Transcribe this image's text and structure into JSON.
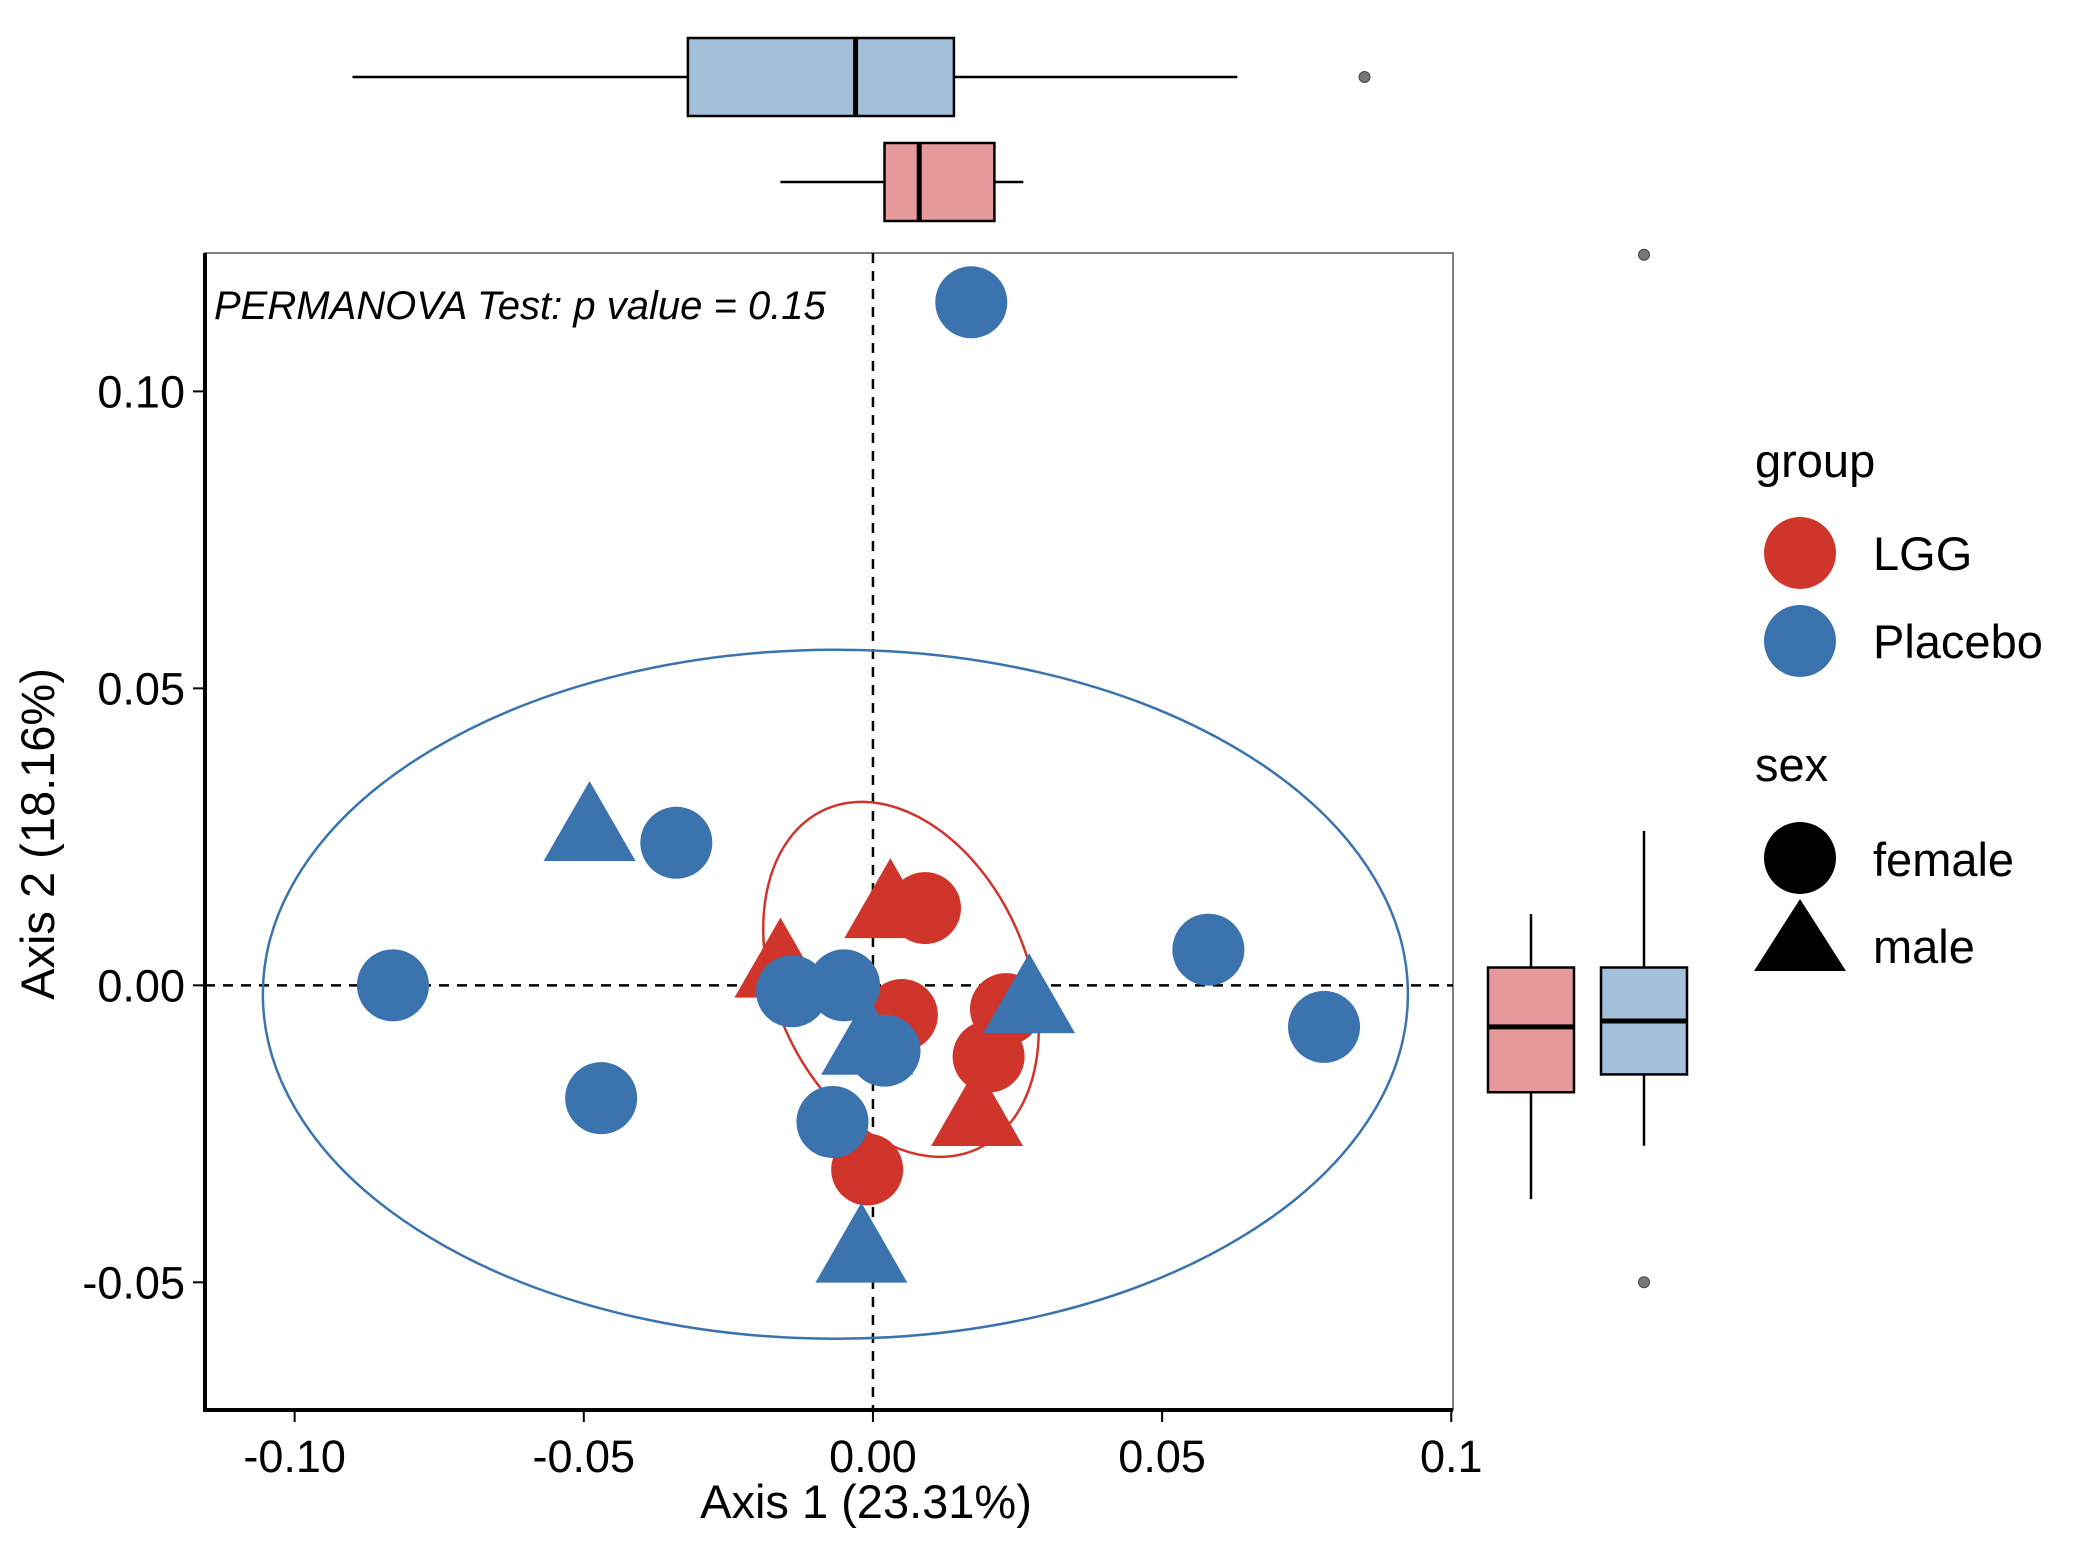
{
  "chart_data": {
    "type": "scatter",
    "annotation": "PERMANOVA Test: p value = 0.15",
    "xlabel": "Axis 1 (23.31%)",
    "ylabel": "Axis 2 (18.16%)",
    "xlim": [
      -0.1155,
      0.1003
    ],
    "ylim": [
      -0.0715,
      0.1233
    ],
    "x_ticks": [
      {
        "value": -0.1,
        "label": "-0.10"
      },
      {
        "value": -0.05,
        "label": "-0.05"
      },
      {
        "value": 0.0,
        "label": "0.00"
      },
      {
        "value": 0.05,
        "label": "0.05"
      },
      {
        "value": 0.1,
        "label": "0.1"
      }
    ],
    "y_ticks": [
      {
        "value": -0.05,
        "label": "-0.05"
      },
      {
        "value": 0.0,
        "label": "0.00"
      },
      {
        "value": 0.05,
        "label": "0.05"
      },
      {
        "value": 0.1,
        "label": "0.10"
      }
    ],
    "grid": false,
    "reference_lines": {
      "x": 0,
      "y": 0,
      "style": "dashed"
    },
    "colors": {
      "LGG": "#d0352b",
      "Placebo": "#3a73ad",
      "LGG_box": "#e5999b",
      "Placebo_box": "#a3bfd9"
    },
    "legend": {
      "position": "right",
      "group_title": "group",
      "groups": [
        {
          "name": "LGG",
          "color": "#d0352b"
        },
        {
          "name": "Placebo",
          "color": "#3a73ad"
        }
      ],
      "sex_title": "sex",
      "sexes": [
        {
          "name": "female",
          "shape": "circle"
        },
        {
          "name": "male",
          "shape": "triangle"
        }
      ]
    },
    "series": [
      {
        "name": "LGG",
        "points": [
          {
            "x": 0.009,
            "y": 0.013,
            "sex": "female"
          },
          {
            "x": 0.003,
            "y": 0.014,
            "sex": "male"
          },
          {
            "x": -0.016,
            "y": 0.004,
            "sex": "male"
          },
          {
            "x": 0.005,
            "y": -0.005,
            "sex": "female"
          },
          {
            "x": 0.023,
            "y": -0.004,
            "sex": "female"
          },
          {
            "x": 0.02,
            "y": -0.012,
            "sex": "female"
          },
          {
            "x": 0.018,
            "y": -0.021,
            "sex": "male"
          },
          {
            "x": -0.001,
            "y": -0.031,
            "sex": "female"
          }
        ]
      },
      {
        "name": "Placebo",
        "points": [
          {
            "x": 0.017,
            "y": 0.115,
            "sex": "female"
          },
          {
            "x": -0.049,
            "y": 0.027,
            "sex": "male"
          },
          {
            "x": -0.034,
            "y": 0.024,
            "sex": "female"
          },
          {
            "x": -0.083,
            "y": 0.0,
            "sex": "female"
          },
          {
            "x": -0.014,
            "y": -0.001,
            "sex": "female"
          },
          {
            "x": -0.005,
            "y": 0.0,
            "sex": "female"
          },
          {
            "x": 0.027,
            "y": -0.002,
            "sex": "male"
          },
          {
            "x": 0.058,
            "y": 0.006,
            "sex": "female"
          },
          {
            "x": 0.078,
            "y": -0.007,
            "sex": "female"
          },
          {
            "x": -0.001,
            "y": -0.009,
            "sex": "male"
          },
          {
            "x": 0.002,
            "y": -0.011,
            "sex": "female"
          },
          {
            "x": -0.047,
            "y": -0.019,
            "sex": "female"
          },
          {
            "x": -0.007,
            "y": -0.023,
            "sex": "female"
          },
          {
            "x": -0.002,
            "y": -0.044,
            "sex": "male"
          }
        ]
      }
    ],
    "ellipses": [
      {
        "group": "Placebo",
        "center": [
          -0.0065,
          -0.0015
        ],
        "semi_x": 0.099,
        "semi_y": 0.058
      },
      {
        "group": "LGG",
        "center": [
          0.0045,
          0.0
        ]
      }
    ],
    "marginal_boxplots": {
      "top": [
        {
          "group": "Placebo",
          "whisker_low": -0.09,
          "q1": -0.032,
          "median": -0.003,
          "q3": 0.014,
          "whisker_high": 0.063,
          "outliers": [
            0.085
          ]
        },
        {
          "group": "LGG",
          "whisker_low": -0.016,
          "q1": 0.002,
          "median": 0.008,
          "q3": 0.021,
          "whisker_high": 0.026,
          "outliers": []
        }
      ],
      "right": [
        {
          "group": "LGG",
          "whisker_low": -0.036,
          "q1": -0.018,
          "median": -0.007,
          "q3": 0.003,
          "whisker_high": 0.012,
          "outliers": []
        },
        {
          "group": "Placebo",
          "whisker_low": -0.027,
          "q1": -0.015,
          "median": -0.006,
          "q3": 0.003,
          "whisker_high": 0.026,
          "outliers": [
            0.123,
            -0.05
          ]
        }
      ]
    }
  }
}
